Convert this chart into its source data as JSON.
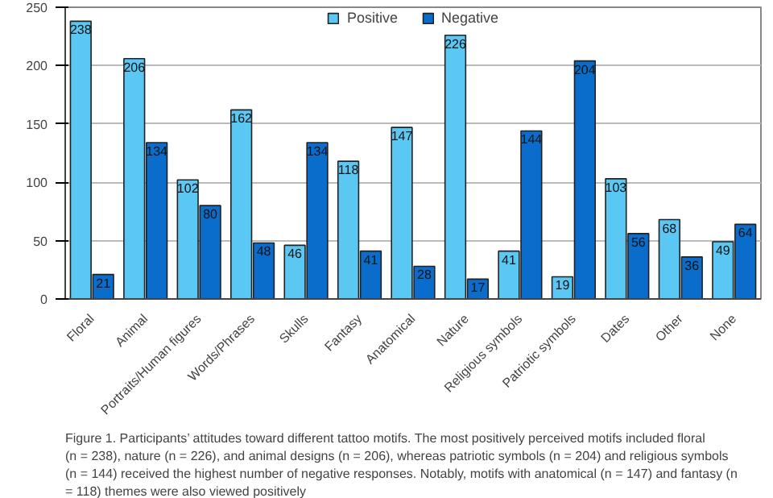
{
  "chart_data": {
    "type": "bar",
    "categories": [
      "Floral",
      "Animal",
      "Portraits/Human figures",
      "Words/Phrases",
      "Skulls",
      "Fantasy",
      "Anatomical",
      "Nature",
      "Religious symbols",
      "Patriotic symbols",
      "Dates",
      "Other",
      "None"
    ],
    "series": [
      {
        "name": "Positive",
        "color": "#5bc8f3",
        "values": [
          238,
          206,
          102,
          162,
          46,
          118,
          147,
          226,
          41,
          19,
          103,
          68,
          49
        ]
      },
      {
        "name": "Negative",
        "color": "#0a6dcb",
        "values": [
          21,
          134,
          80,
          48,
          134,
          41,
          28,
          17,
          144,
          204,
          56,
          36,
          64
        ]
      }
    ],
    "ylim": [
      0,
      250
    ],
    "yticks": [
      0,
      50,
      100,
      150,
      200,
      250
    ],
    "grid": "y",
    "legend": "top",
    "data_labels": true,
    "annotations": [
      "Figure 1. Participants’ attitudes toward different tattoo motifs. The most positively perceived motifs included floral (n = 238), nature (n = 226), and animal designs (n = 206), whereas patriotic symbols (n = 204) and religious symbols (n = 144) received the highest number of negative responses. Notably, motifs with anatomical (n = 147) and fantasy (n = 118) themes were also viewed positively"
    ]
  }
}
